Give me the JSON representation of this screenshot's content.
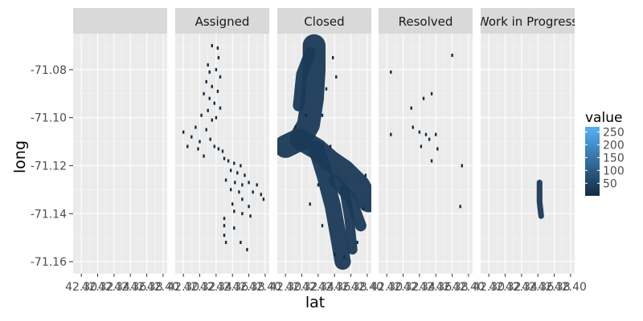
{
  "chart_data": {
    "type": "heatmap",
    "title": "",
    "xlabel": "lat",
    "ylabel": "long",
    "facets": [
      "",
      "Assigned",
      "Closed",
      "Resolved",
      "Work in Progress"
    ],
    "x_tick_labels": [
      "42.30",
      "42.32",
      "42.34",
      "42.36",
      "42.38",
      "42.40"
    ],
    "x_range": [
      42.29,
      42.405
    ],
    "y_range": [
      -71.165,
      -71.065
    ],
    "y_ticks": [
      -71.08,
      -71.1,
      -71.12,
      -71.14,
      -71.16
    ],
    "y_tick_labels": [
      "-71.08",
      "-71.10",
      "-71.12",
      "-71.14",
      "-71.16"
    ],
    "legend": {
      "title": "value",
      "placement": "right",
      "breaks": [
        50,
        100,
        150,
        200,
        250
      ],
      "break_labels": [
        "50",
        "100",
        "150",
        "200",
        "250"
      ],
      "range": [
        1,
        270
      ],
      "low_color": "#132B43",
      "high_color": "#56B1F7"
    },
    "grid": true,
    "panel_background": "#EBEBEB",
    "strip_background": "#D9D9D9",
    "panels": [
      {
        "facet": "",
        "paths": [],
        "points": []
      },
      {
        "facet": "Assigned",
        "paths": [],
        "points": [
          [
            42.335,
            -71.07
          ],
          [
            42.342,
            -71.071
          ],
          [
            42.343,
            -71.075
          ],
          [
            42.33,
            -71.078
          ],
          [
            42.332,
            -71.081
          ],
          [
            42.34,
            -71.08
          ],
          [
            42.345,
            -71.083
          ],
          [
            42.328,
            -71.085
          ],
          [
            42.335,
            -71.087
          ],
          [
            42.342,
            -71.089
          ],
          [
            42.325,
            -71.09
          ],
          [
            42.332,
            -71.092
          ],
          [
            42.338,
            -71.094
          ],
          [
            42.33,
            -71.097
          ],
          [
            42.345,
            -71.096
          ],
          [
            42.322,
            -71.099
          ],
          [
            42.335,
            -71.101
          ],
          [
            42.34,
            -71.1
          ],
          [
            42.315,
            -71.104
          ],
          [
            42.328,
            -71.105
          ],
          [
            42.3,
            -71.106
          ],
          [
            42.31,
            -71.108
          ],
          [
            42.32,
            -71.11
          ],
          [
            42.333,
            -71.109
          ],
          [
            42.305,
            -71.112
          ],
          [
            42.318,
            -71.113
          ],
          [
            42.338,
            -71.112
          ],
          [
            42.343,
            -71.113
          ],
          [
            42.348,
            -71.114
          ],
          [
            42.325,
            -71.116
          ],
          [
            42.35,
            -71.117
          ],
          [
            42.355,
            -71.118
          ],
          [
            42.362,
            -71.119
          ],
          [
            42.37,
            -71.12
          ],
          [
            42.358,
            -71.122
          ],
          [
            42.366,
            -71.123
          ],
          [
            42.375,
            -71.124
          ],
          [
            42.352,
            -71.126
          ],
          [
            42.363,
            -71.127
          ],
          [
            42.372,
            -71.128
          ],
          [
            42.38,
            -71.127
          ],
          [
            42.39,
            -71.128
          ],
          [
            42.358,
            -71.13
          ],
          [
            42.368,
            -71.131
          ],
          [
            42.385,
            -71.131
          ],
          [
            42.395,
            -71.132
          ],
          [
            42.398,
            -71.134
          ],
          [
            42.372,
            -71.134
          ],
          [
            42.36,
            -71.136
          ],
          [
            42.38,
            -71.137
          ],
          [
            42.362,
            -71.139
          ],
          [
            42.372,
            -71.14
          ],
          [
            42.35,
            -71.142
          ],
          [
            42.382,
            -71.141
          ],
          [
            42.35,
            -71.145
          ],
          [
            42.362,
            -71.146
          ],
          [
            42.35,
            -71.149
          ],
          [
            42.352,
            -71.152
          ],
          [
            42.37,
            -71.152
          ],
          [
            42.378,
            -71.155
          ]
        ]
      },
      {
        "facet": "Closed",
        "paths": [
          {
            "w": 0.028,
            "pts": [
              [
                42.335,
                -71.07
              ],
              [
                42.335,
                -71.08
              ],
              [
                42.333,
                -71.092
              ],
              [
                42.328,
                -71.103
              ],
              [
                42.318,
                -71.109
              ],
              [
                42.3,
                -71.112
              ]
            ]
          },
          {
            "w": 0.014,
            "pts": [
              [
                42.33,
                -71.073
              ],
              [
                42.32,
                -71.082
              ],
              [
                42.316,
                -71.095
              ]
            ]
          },
          {
            "w": 0.026,
            "pts": [
              [
                42.318,
                -71.109
              ],
              [
                42.338,
                -71.113
              ],
              [
                42.355,
                -71.118
              ],
              [
                42.372,
                -71.122
              ],
              [
                42.39,
                -71.128
              ],
              [
                42.402,
                -71.135
              ]
            ]
          },
          {
            "w": 0.02,
            "pts": [
              [
                42.338,
                -71.113
              ],
              [
                42.348,
                -71.124
              ],
              [
                42.358,
                -71.137
              ],
              [
                42.366,
                -71.152
              ],
              [
                42.37,
                -71.16
              ]
            ]
          },
          {
            "w": 0.014,
            "pts": [
              [
                42.36,
                -71.126
              ],
              [
                42.38,
                -71.134
              ],
              [
                42.392,
                -71.145
              ]
            ]
          },
          {
            "w": 0.012,
            "pts": [
              [
                42.372,
                -71.13
              ],
              [
                42.378,
                -71.142
              ],
              [
                42.382,
                -71.155
              ]
            ]
          }
        ],
        "points": [
          [
            42.358,
            -71.075
          ],
          [
            42.362,
            -71.083
          ],
          [
            42.35,
            -71.088
          ],
          [
            42.312,
            -71.104
          ],
          [
            42.325,
            -71.099
          ],
          [
            42.345,
            -71.099
          ],
          [
            42.398,
            -71.124
          ],
          [
            42.345,
            -71.145
          ],
          [
            42.33,
            -71.136
          ],
          [
            42.388,
            -71.152
          ],
          [
            42.36,
            -71.157
          ],
          [
            42.372,
            -71.158
          ],
          [
            42.355,
            -71.112
          ],
          [
            42.395,
            -71.138
          ],
          [
            42.34,
            -71.128
          ]
        ]
      },
      {
        "facet": "Resolved",
        "paths": [],
        "points": [
          [
            42.38,
            -71.074
          ],
          [
            42.305,
            -71.081
          ],
          [
            42.355,
            -71.09
          ],
          [
            42.345,
            -71.092
          ],
          [
            42.33,
            -71.096
          ],
          [
            42.332,
            -71.104
          ],
          [
            42.34,
            -71.106
          ],
          [
            42.305,
            -71.107
          ],
          [
            42.348,
            -71.107
          ],
          [
            42.36,
            -71.107
          ],
          [
            42.352,
            -71.109
          ],
          [
            42.342,
            -71.112
          ],
          [
            42.362,
            -71.113
          ],
          [
            42.355,
            -71.118
          ],
          [
            42.392,
            -71.12
          ],
          [
            42.39,
            -71.137
          ],
          [
            42.408,
            -71.151
          ]
        ]
      },
      {
        "facet": "Work in Progress",
        "paths": [
          {
            "w": 0.007,
            "pts": [
              [
                42.362,
                -71.127
              ],
              [
                42.362,
                -71.135
              ],
              [
                42.364,
                -71.141
              ]
            ]
          }
        ],
        "points": []
      }
    ]
  }
}
